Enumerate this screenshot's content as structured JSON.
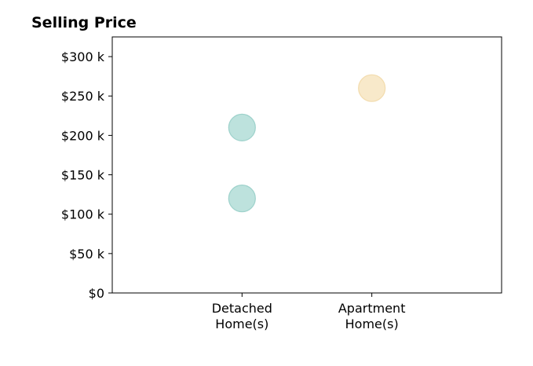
{
  "chart_data": {
    "type": "scatter",
    "title": "Selling Price",
    "xlabel": "",
    "ylabel": "",
    "categories": [
      [
        "Detached",
        "Home(s)"
      ],
      [
        "Apartment",
        "Home(s)"
      ]
    ],
    "xlim": [
      0,
      3
    ],
    "ylim": [
      0,
      325000
    ],
    "yticks": [
      0,
      50000,
      100000,
      150000,
      200000,
      250000,
      300000
    ],
    "ytick_labels": [
      "$0",
      "$50 k",
      "$100 k",
      "$150 k",
      "$200 k",
      "$250 k",
      "$300 k"
    ],
    "grid": false,
    "points": [
      {
        "category_index": 0,
        "value": 210000,
        "color": "#a7d8d2"
      },
      {
        "category_index": 0,
        "value": 120000,
        "color": "#a7d8d2"
      },
      {
        "category_index": 1,
        "value": 260000,
        "color": "#f6e2b8"
      }
    ],
    "marker_opacity": 0.75,
    "marker_edge_colors": [
      "#8fcbc3",
      "#f0d6a0"
    ]
  }
}
